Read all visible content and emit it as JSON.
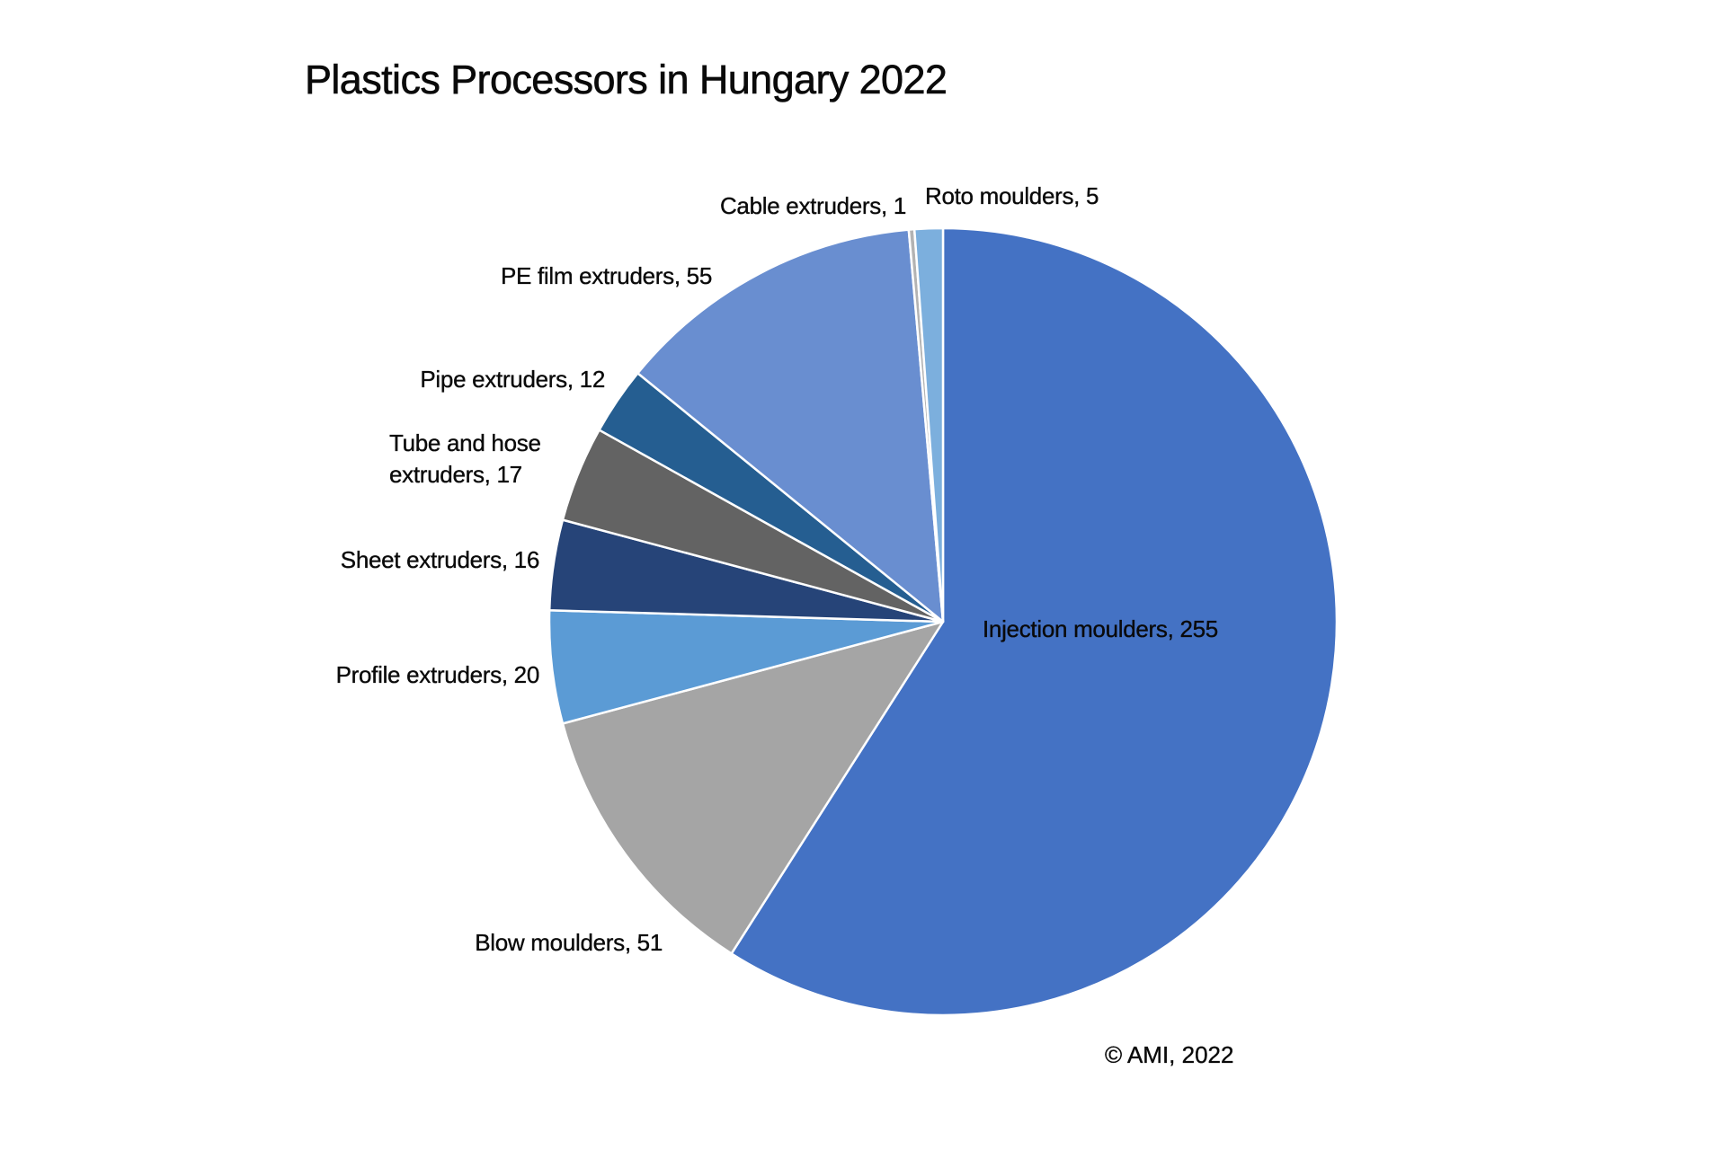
{
  "title": "Plastics Processors in Hungary 2022",
  "copyright": "© AMI, 2022",
  "labels": {
    "injection": "Injection moulders, 255",
    "blow": "Blow moulders, 51",
    "profile": "Profile extruders, 20",
    "sheet": "Sheet extruders, 16",
    "tube_line1": "Tube and hose",
    "tube_line2": "extruders, 17",
    "pipe": "Pipe extruders, 12",
    "pe_film": "PE film extruders, 55",
    "cable": "Cable extruders, 1",
    "roto": "Roto moulders, 5"
  },
  "chart_data": {
    "type": "pie",
    "title": "Plastics Processors in Hungary 2022",
    "categories": [
      "Injection moulders",
      "Blow moulders",
      "Profile extruders",
      "Sheet extruders",
      "Tube and hose extruders",
      "Pipe extruders",
      "PE film extruders",
      "Cable extruders",
      "Roto moulders"
    ],
    "values": [
      255,
      51,
      20,
      16,
      17,
      12,
      55,
      1,
      5
    ],
    "colors": [
      "#4472C4",
      "#A5A5A5",
      "#5B9BD5",
      "#264478",
      "#636363",
      "#255E91",
      "#698ED0",
      "#B3B3B3",
      "#7CAFDD"
    ],
    "start_angle": "12 o'clock",
    "direction": "clockwise",
    "data_labels": "category, value",
    "legend": "none",
    "annotation": "© AMI, 2022"
  }
}
